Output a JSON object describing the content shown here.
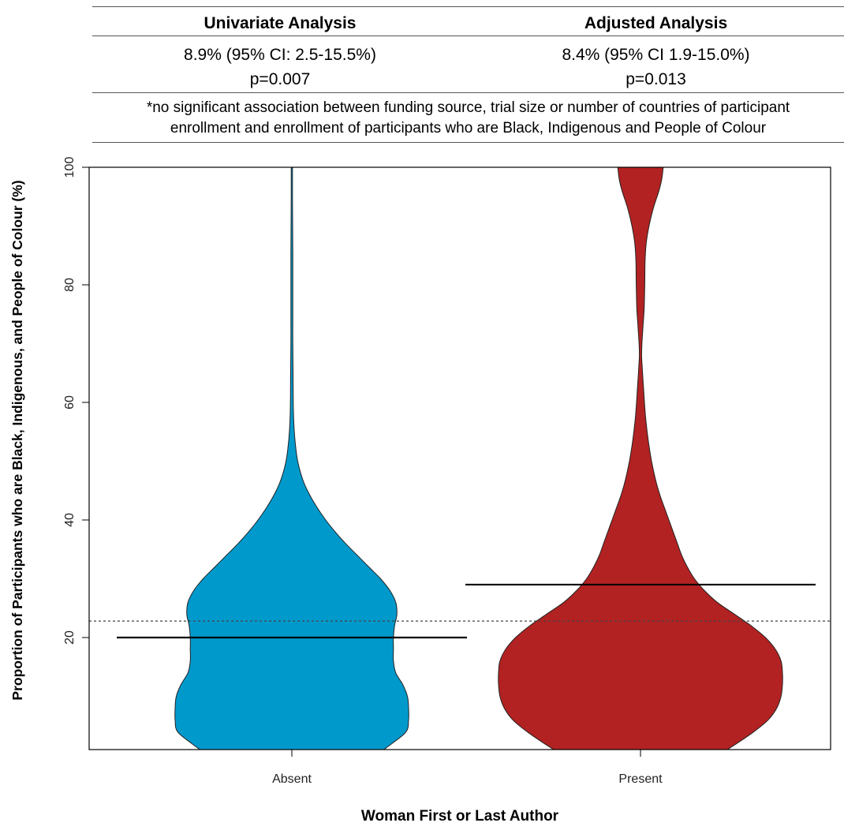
{
  "stats_table": {
    "columns": [
      {
        "header": "Univariate Analysis",
        "estimate": "8.9% (95% CI: 2.5-15.5%)",
        "p_value": "p=0.007"
      },
      {
        "header": "Adjusted Analysis",
        "estimate": "8.4% (95% CI 1.9-15.0%)",
        "p_value": "p=0.013"
      }
    ],
    "footnote_line1": "*no significant association between funding source, trial size or number of countries of participant",
    "footnote_line2": "enrollment and enrollment of participants who are Black, Indigenous and People of Colour"
  },
  "chart_data": {
    "type": "violin",
    "xlabel": "Woman First or Last Author",
    "ylabel": "Proportion of Participants who are Black, Indigenous, and People of Colour (%)",
    "ylim": [
      0,
      100
    ],
    "yticks": [
      20,
      40,
      60,
      80,
      100
    ],
    "categories": [
      "Absent",
      "Present"
    ],
    "reference_line": {
      "value": 22.8,
      "style": "dotted"
    },
    "series": [
      {
        "category": "Absent",
        "color": "#0099CC",
        "median": 20,
        "density": [
          [
            0,
            0.72
          ],
          [
            2,
            0.86
          ],
          [
            4,
            0.98
          ],
          [
            6,
            1.0
          ],
          [
            8,
            1.0
          ],
          [
            10,
            0.99
          ],
          [
            12,
            0.95
          ],
          [
            14,
            0.89
          ],
          [
            16,
            0.87
          ],
          [
            18,
            0.87
          ],
          [
            20,
            0.87
          ],
          [
            22,
            0.88
          ],
          [
            24,
            0.9
          ],
          [
            26,
            0.89
          ],
          [
            28,
            0.84
          ],
          [
            30,
            0.76
          ],
          [
            32,
            0.66
          ],
          [
            34,
            0.56
          ],
          [
            36,
            0.46
          ],
          [
            38,
            0.37
          ],
          [
            40,
            0.29
          ],
          [
            42,
            0.22
          ],
          [
            44,
            0.16
          ],
          [
            46,
            0.11
          ],
          [
            48,
            0.075
          ],
          [
            50,
            0.05
          ],
          [
            52,
            0.035
          ],
          [
            54,
            0.025
          ],
          [
            56,
            0.018
          ],
          [
            58,
            0.014
          ],
          [
            60,
            0.012
          ],
          [
            65,
            0.01
          ],
          [
            70,
            0.008
          ],
          [
            75,
            0.008
          ],
          [
            80,
            0.008
          ],
          [
            85,
            0.008
          ],
          [
            90,
            0.007
          ],
          [
            95,
            0.004
          ],
          [
            100,
            0.0
          ]
        ]
      },
      {
        "category": "Present",
        "color": "#B22222",
        "median": 29,
        "density": [
          [
            0,
            0.55
          ],
          [
            2,
            0.68
          ],
          [
            4,
            0.8
          ],
          [
            6,
            0.9
          ],
          [
            8,
            0.96
          ],
          [
            10,
            0.99
          ],
          [
            12,
            1.0
          ],
          [
            14,
            1.0
          ],
          [
            16,
            0.99
          ],
          [
            18,
            0.95
          ],
          [
            20,
            0.88
          ],
          [
            22,
            0.78
          ],
          [
            24,
            0.66
          ],
          [
            26,
            0.54
          ],
          [
            28,
            0.45
          ],
          [
            30,
            0.38
          ],
          [
            32,
            0.33
          ],
          [
            34,
            0.29
          ],
          [
            36,
            0.26
          ],
          [
            38,
            0.23
          ],
          [
            40,
            0.2
          ],
          [
            42,
            0.17
          ],
          [
            44,
            0.14
          ],
          [
            46,
            0.115
          ],
          [
            48,
            0.095
          ],
          [
            50,
            0.078
          ],
          [
            52,
            0.064
          ],
          [
            54,
            0.052
          ],
          [
            56,
            0.042
          ],
          [
            58,
            0.034
          ],
          [
            60,
            0.028
          ],
          [
            63,
            0.02
          ],
          [
            66,
            0.012
          ],
          [
            68,
            0.008
          ],
          [
            70,
            0.01
          ],
          [
            73,
            0.018
          ],
          [
            76,
            0.026
          ],
          [
            80,
            0.03
          ],
          [
            84,
            0.032
          ],
          [
            87,
            0.04
          ],
          [
            90,
            0.06
          ],
          [
            93,
            0.09
          ],
          [
            96,
            0.13
          ],
          [
            98,
            0.15
          ],
          [
            100,
            0.16
          ]
        ]
      }
    ]
  }
}
